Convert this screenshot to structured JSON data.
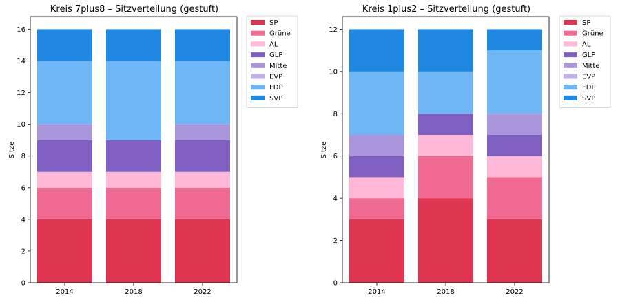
{
  "chart_data": [
    {
      "type": "bar",
      "stacked": true,
      "title": "Kreis 7plus8 – Sitzverteilung (gestuft)",
      "xlabel": "",
      "ylabel": "Sitze",
      "categories": [
        "2014",
        "2018",
        "2022"
      ],
      "ylim": [
        0,
        16.8
      ],
      "yticks": [
        0,
        2,
        4,
        6,
        8,
        10,
        12,
        14,
        16
      ],
      "legend_position": "outside-right-top",
      "series": [
        {
          "name": "SP",
          "values": [
            4,
            4,
            4
          ],
          "color": "#e03550"
        },
        {
          "name": "Grüne",
          "values": [
            2,
            2,
            2
          ],
          "color": "#f06a94"
        },
        {
          "name": "AL",
          "values": [
            1,
            1,
            1
          ],
          "color": "#ffb8d8"
        },
        {
          "name": "GLP",
          "values": [
            2,
            2,
            2
          ],
          "color": "#7f60c2"
        },
        {
          "name": "Mitte",
          "values": [
            1,
            0,
            1
          ],
          "color": "#ab96dc"
        },
        {
          "name": "EVP",
          "values": [
            0,
            0,
            0
          ],
          "color": "#c3b2e8"
        },
        {
          "name": "FDP",
          "values": [
            4,
            5,
            4
          ],
          "color": "#6eb6f5"
        },
        {
          "name": "SVP",
          "values": [
            2,
            2,
            2
          ],
          "color": "#1f88e3"
        }
      ]
    },
    {
      "type": "bar",
      "stacked": true,
      "title": "Kreis 1plus2 – Sitzverteilung (gestuft)",
      "xlabel": "",
      "ylabel": "Sitze",
      "categories": [
        "2014",
        "2018",
        "2022"
      ],
      "ylim": [
        0,
        12.6
      ],
      "yticks": [
        0,
        2,
        4,
        6,
        8,
        10,
        12
      ],
      "legend_position": "outside-right-top",
      "series": [
        {
          "name": "SP",
          "values": [
            3,
            4,
            3
          ],
          "color": "#e03550"
        },
        {
          "name": "Grüne",
          "values": [
            1,
            2,
            2
          ],
          "color": "#f06a94"
        },
        {
          "name": "AL",
          "values": [
            1,
            1,
            1
          ],
          "color": "#ffb8d8"
        },
        {
          "name": "GLP",
          "values": [
            1,
            1,
            1
          ],
          "color": "#7f60c2"
        },
        {
          "name": "Mitte",
          "values": [
            1,
            0,
            1
          ],
          "color": "#ab96dc"
        },
        {
          "name": "EVP",
          "values": [
            0,
            0,
            0
          ],
          "color": "#c3b2e8"
        },
        {
          "name": "FDP",
          "values": [
            3,
            2,
            3
          ],
          "color": "#6eb6f5"
        },
        {
          "name": "SVP",
          "values": [
            2,
            2,
            1
          ],
          "color": "#1f88e3"
        }
      ]
    }
  ]
}
